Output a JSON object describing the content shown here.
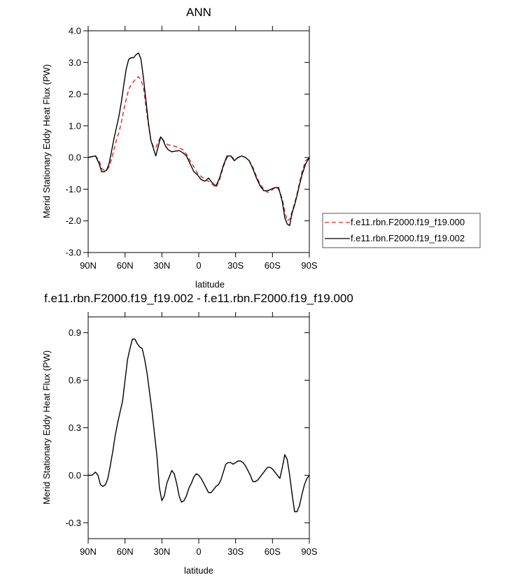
{
  "chart_data": [
    {
      "type": "line",
      "title": "ANN",
      "xlabel": "latitude",
      "ylabel": "Merid Stationary Eddy Heat Flux (PW)",
      "x_direction": "north-to-south",
      "xlim": [
        90,
        -90
      ],
      "xticks": [
        90,
        60,
        30,
        0,
        -30,
        -60,
        -90
      ],
      "xtick_labels": [
        "90N",
        "60N",
        "30N",
        "0",
        "30S",
        "60S",
        "90S"
      ],
      "ylim": [
        -3.0,
        4.0
      ],
      "yticks": [
        -3,
        -2,
        -1,
        0,
        1,
        2,
        3,
        4
      ],
      "ytick_labels": [
        "-3.0",
        "-2.0",
        "-1.0",
        "0.0",
        "1.0",
        "2.0",
        "3.0",
        "4.0"
      ],
      "grid": false,
      "legend_position": "right",
      "series": [
        {
          "name": "f.e11.rbn.F2000.f19_f19.000",
          "color": "#d62728",
          "dash": "dashed",
          "x": [
            90,
            87,
            84,
            81,
            79,
            77,
            75,
            73,
            71,
            69,
            67,
            65,
            63,
            61,
            59,
            57,
            55,
            53,
            51,
            49,
            47,
            45,
            43,
            41,
            39,
            37,
            35,
            33,
            31,
            29,
            27,
            25,
            22,
            19,
            16,
            13,
            10,
            7,
            4,
            1,
            -2,
            -5,
            -8,
            -11,
            -14,
            -17,
            -20,
            -23,
            -26,
            -29,
            -32,
            -35,
            -38,
            -41,
            -44,
            -47,
            -50,
            -53,
            -56,
            -59,
            -62,
            -65,
            -68,
            -70,
            -72,
            -74,
            -76,
            -78,
            -80,
            -82,
            -84,
            -87,
            -90
          ],
          "y": [
            0.0,
            0.02,
            0.05,
            -0.1,
            -0.35,
            -0.4,
            -0.4,
            -0.3,
            -0.05,
            0.25,
            0.55,
            0.8,
            1.1,
            1.5,
            1.85,
            2.15,
            2.3,
            2.4,
            2.5,
            2.55,
            2.45,
            2.2,
            1.6,
            1.05,
            0.55,
            0.35,
            0.3,
            0.5,
            0.65,
            0.55,
            0.45,
            0.4,
            0.38,
            0.35,
            0.3,
            0.25,
            0.1,
            -0.1,
            -0.3,
            -0.5,
            -0.6,
            -0.7,
            -0.75,
            -0.85,
            -0.95,
            -0.7,
            -0.3,
            0.0,
            0.05,
            -0.05,
            0.0,
            0.05,
            0.0,
            -0.1,
            -0.3,
            -0.6,
            -0.85,
            -1.0,
            -1.1,
            -1.05,
            -0.95,
            -1.0,
            -1.3,
            -1.7,
            -2.0,
            -1.95,
            -1.7,
            -1.45,
            -1.15,
            -0.8,
            -0.45,
            -0.1,
            0.0
          ]
        },
        {
          "name": "f.e11.rbn.F2000.f19_f19.002",
          "color": "#000000",
          "dash": "solid",
          "x": [
            90,
            87,
            84,
            81,
            79,
            77,
            75,
            73,
            71,
            69,
            67,
            65,
            63,
            61,
            59,
            57,
            55,
            53,
            51,
            49,
            47,
            45,
            43,
            41,
            39,
            37,
            35,
            33,
            31,
            29,
            27,
            25,
            22,
            19,
            16,
            13,
            10,
            7,
            4,
            1,
            -2,
            -5,
            -8,
            -11,
            -14,
            -17,
            -20,
            -23,
            -26,
            -29,
            -32,
            -35,
            -38,
            -41,
            -44,
            -47,
            -50,
            -53,
            -56,
            -59,
            -62,
            -65,
            -68,
            -70,
            -72,
            -74,
            -76,
            -78,
            -80,
            -82,
            -84,
            -87,
            -90
          ],
          "y": [
            0.0,
            0.03,
            0.05,
            -0.2,
            -0.45,
            -0.45,
            -0.4,
            -0.2,
            0.2,
            0.6,
            0.95,
            1.3,
            1.75,
            2.3,
            2.8,
            3.1,
            3.15,
            3.15,
            3.25,
            3.3,
            3.1,
            2.5,
            1.8,
            1.1,
            0.55,
            0.3,
            0.05,
            0.35,
            0.65,
            0.55,
            0.35,
            0.25,
            0.18,
            0.2,
            0.22,
            0.15,
            0.05,
            -0.2,
            -0.45,
            -0.55,
            -0.7,
            -0.75,
            -0.65,
            -0.8,
            -0.9,
            -0.65,
            -0.25,
            0.05,
            0.05,
            -0.1,
            0.0,
            0.05,
            0.0,
            -0.1,
            -0.35,
            -0.65,
            -0.9,
            -1.05,
            -1.05,
            -1.0,
            -0.95,
            -0.95,
            -1.4,
            -1.9,
            -2.1,
            -2.15,
            -1.75,
            -1.5,
            -1.2,
            -0.85,
            -0.55,
            -0.2,
            0.0
          ]
        }
      ]
    },
    {
      "type": "line",
      "title": "f.e11.rbn.F2000.f19_f19.002 - f.e11.rbn.F2000.f19_f19.000",
      "xlabel": "latitude",
      "ylabel": "Merid Stationary Eddy Heat Flux (PW)",
      "x_direction": "north-to-south",
      "xlim": [
        90,
        -90
      ],
      "xticks": [
        90,
        60,
        30,
        0,
        -30,
        -60,
        -90
      ],
      "xtick_labels": [
        "90N",
        "60N",
        "30N",
        "0",
        "30S",
        "60S",
        "90S"
      ],
      "ylim": [
        -0.4,
        1.0
      ],
      "yticks": [
        -0.3,
        0.0,
        0.3,
        0.6,
        0.9
      ],
      "ytick_labels": [
        "-0.3",
        "0.0",
        "0.3",
        "0.6",
        "0.9"
      ],
      "grid": false,
      "series": [
        {
          "color": "#000000",
          "dash": "solid",
          "x": [
            90,
            87,
            84,
            82,
            80,
            78,
            76,
            74,
            72,
            70,
            68,
            66,
            64,
            62,
            60,
            58,
            56,
            54,
            52,
            50,
            48,
            46,
            44,
            42,
            40,
            38,
            36,
            34,
            32,
            30,
            28,
            26,
            24,
            22,
            20,
            18,
            16,
            14,
            12,
            10,
            8,
            6,
            4,
            2,
            0,
            -2,
            -4,
            -6,
            -8,
            -10,
            -12,
            -14,
            -16,
            -18,
            -20,
            -22,
            -24,
            -26,
            -28,
            -30,
            -32,
            -34,
            -36,
            -38,
            -40,
            -42,
            -44,
            -46,
            -48,
            -50,
            -52,
            -54,
            -56,
            -58,
            -60,
            -62,
            -64,
            -66,
            -68,
            -70,
            -72,
            -74,
            -76,
            -78,
            -80,
            -82,
            -84,
            -86,
            -88,
            -90
          ],
          "y": [
            0.0,
            0.0,
            0.02,
            0.0,
            -0.06,
            -0.07,
            -0.06,
            -0.02,
            0.06,
            0.15,
            0.25,
            0.33,
            0.4,
            0.47,
            0.6,
            0.73,
            0.8,
            0.86,
            0.86,
            0.83,
            0.81,
            0.8,
            0.73,
            0.64,
            0.52,
            0.4,
            0.26,
            0.12,
            -0.08,
            -0.16,
            -0.13,
            -0.05,
            -0.01,
            0.03,
            0.01,
            -0.05,
            -0.13,
            -0.17,
            -0.16,
            -0.13,
            -0.08,
            -0.05,
            -0.01,
            0.01,
            0.0,
            -0.02,
            -0.05,
            -0.08,
            -0.11,
            -0.11,
            -0.09,
            -0.07,
            -0.06,
            -0.03,
            0.02,
            0.07,
            0.08,
            0.08,
            0.07,
            0.08,
            0.09,
            0.09,
            0.08,
            0.06,
            0.03,
            0.0,
            -0.04,
            -0.04,
            -0.03,
            -0.01,
            0.01,
            0.03,
            0.05,
            0.05,
            0.04,
            0.02,
            0.0,
            -0.02,
            0.05,
            0.13,
            0.1,
            0.0,
            -0.12,
            -0.23,
            -0.23,
            -0.19,
            -0.12,
            -0.06,
            -0.02,
            0.0
          ]
        }
      ]
    }
  ]
}
